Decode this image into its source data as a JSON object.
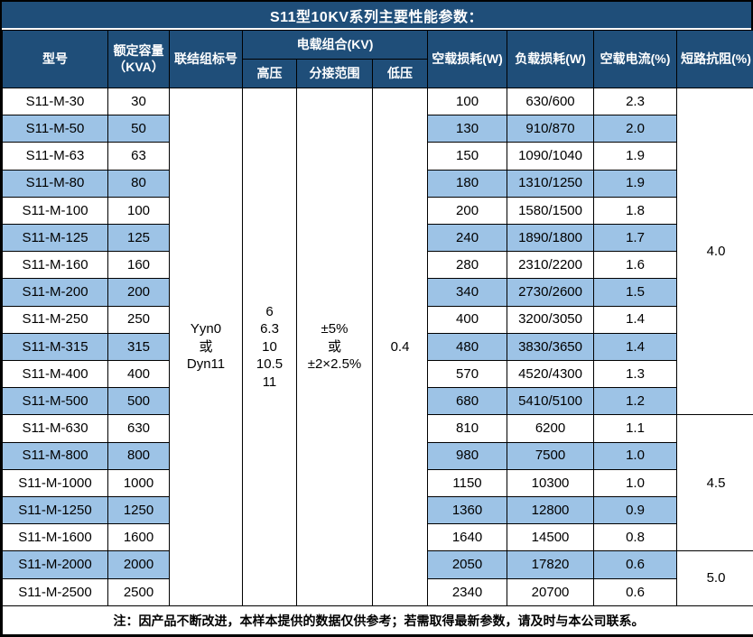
{
  "title": "S11型10KV系列主要性能参数：",
  "colors": {
    "header_bg": "#1F4E79",
    "stripe": "#9DC3E6",
    "border": "#000000",
    "header_text": "#FFFFFF",
    "body_text": "#000000"
  },
  "table": {
    "headers": {
      "model": "型号",
      "capacity_line1": "额定容量",
      "capacity_line2": "（KVA）",
      "connection": "联结组标号",
      "voltage_group": "电载组合(KV)",
      "hv": "高压",
      "tap": "分接范围",
      "lv": "低压",
      "noload_loss": "空载损耗(W)",
      "load_loss": "负载损耗(W)",
      "noload_current": "空载电流(%)",
      "impedance": "短路抗阻(%)"
    },
    "merged": {
      "connection": [
        "Yyn0",
        "或",
        "Dyn11"
      ],
      "hv": [
        "6",
        "6.3",
        "10",
        "10.5",
        "11"
      ],
      "tap": [
        "±5%",
        "或",
        "±2×2.5%"
      ],
      "lv": "0.4"
    },
    "rows": [
      {
        "model": "S11-M-30",
        "capacity": "30",
        "noload": "100",
        "load": "630/600",
        "current": "2.3"
      },
      {
        "model": "S11-M-50",
        "capacity": "50",
        "noload": "130",
        "load": "910/870",
        "current": "2.0"
      },
      {
        "model": "S11-M-63",
        "capacity": "63",
        "noload": "150",
        "load": "1090/1040",
        "current": "1.9"
      },
      {
        "model": "S11-M-80",
        "capacity": "80",
        "noload": "180",
        "load": "1310/1250",
        "current": "1.9"
      },
      {
        "model": "S11-M-100",
        "capacity": "100",
        "noload": "200",
        "load": "1580/1500",
        "current": "1.8"
      },
      {
        "model": "S11-M-125",
        "capacity": "125",
        "noload": "240",
        "load": "1890/1800",
        "current": "1.7"
      },
      {
        "model": "S11-M-160",
        "capacity": "160",
        "noload": "280",
        "load": "2310/2200",
        "current": "1.6"
      },
      {
        "model": "S11-M-200",
        "capacity": "200",
        "noload": "340",
        "load": "2730/2600",
        "current": "1.5"
      },
      {
        "model": "S11-M-250",
        "capacity": "250",
        "noload": "400",
        "load": "3200/3050",
        "current": "1.4"
      },
      {
        "model": "S11-M-315",
        "capacity": "315",
        "noload": "480",
        "load": "3830/3650",
        "current": "1.4"
      },
      {
        "model": "S11-M-400",
        "capacity": "400",
        "noload": "570",
        "load": "4520/4300",
        "current": "1.3"
      },
      {
        "model": "S11-M-500",
        "capacity": "500",
        "noload": "680",
        "load": "5410/5100",
        "current": "1.2"
      },
      {
        "model": "S11-M-630",
        "capacity": "630",
        "noload": "810",
        "load": "6200",
        "current": "1.1"
      },
      {
        "model": "S11-M-800",
        "capacity": "800",
        "noload": "980",
        "load": "7500",
        "current": "1.0"
      },
      {
        "model": "S11-M-1000",
        "capacity": "1000",
        "noload": "1150",
        "load": "10300",
        "current": "1.0"
      },
      {
        "model": "S11-M-1250",
        "capacity": "1250",
        "noload": "1360",
        "load": "12800",
        "current": "0.9"
      },
      {
        "model": "S11-M-1600",
        "capacity": "1600",
        "noload": "1640",
        "load": "14500",
        "current": "0.8"
      },
      {
        "model": "S11-M-2000",
        "capacity": "2000",
        "noload": "2050",
        "load": "17820",
        "current": "0.6"
      },
      {
        "model": "S11-M-2500",
        "capacity": "2500",
        "noload": "2340",
        "load": "20700",
        "current": "0.6"
      }
    ],
    "impedance_groups": [
      {
        "value": "4.0",
        "start": 0,
        "span": 12
      },
      {
        "value": "4.5",
        "start": 12,
        "span": 5
      },
      {
        "value": "5.0",
        "start": 17,
        "span": 2
      }
    ]
  },
  "footer_note": "注：因产品不断改进，本样本提供的数据仅供参考；若需取得最新参数，请及时与本公司联系。"
}
